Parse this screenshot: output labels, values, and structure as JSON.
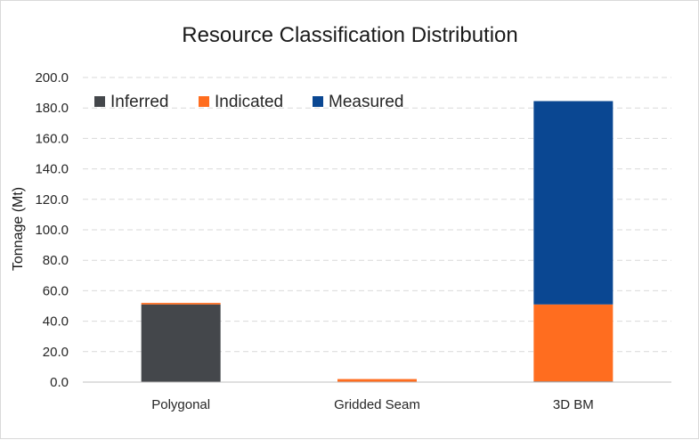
{
  "chart_data": {
    "type": "bar",
    "stacked": true,
    "title": "Resource Classification Distribution",
    "xlabel": "",
    "ylabel": "Tonnage (Mt)",
    "ylim": [
      0,
      200
    ],
    "y_ticks": [
      "0.0",
      "20.0",
      "40.0",
      "60.0",
      "80.0",
      "100.0",
      "120.0",
      "140.0",
      "160.0",
      "180.0",
      "200.0"
    ],
    "grid": true,
    "legend_position": "top-left",
    "categories": [
      "Polygonal",
      "Gridded Seam",
      "3D BM"
    ],
    "series": [
      {
        "name": "Inferred",
        "color": "#44474b",
        "values": [
          51.0,
          0.0,
          0.5
        ]
      },
      {
        "name": "Indicated",
        "color": "#ff6d1f",
        "values": [
          1.0,
          2.0,
          50.5
        ]
      },
      {
        "name": "Measured",
        "color": "#0a4792",
        "values": [
          0.0,
          0.0,
          133.5
        ]
      }
    ]
  }
}
